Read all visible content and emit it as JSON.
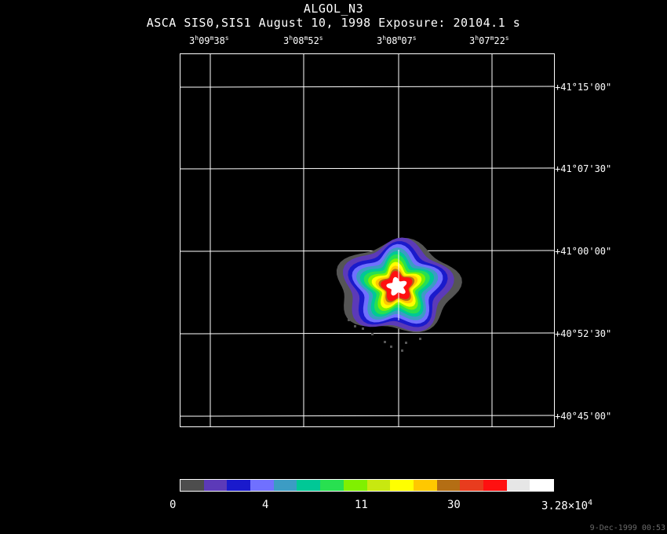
{
  "header": {
    "title": "ALGOL_N3",
    "subtitle": "ASCA SIS0,SIS1 August 10, 1998 Exposure: 20104.1 s"
  },
  "ra_labels": [
    {
      "h": "3",
      "hs": "h",
      "m": "09",
      "ms": "m",
      "s": "38",
      "ss": "s"
    },
    {
      "h": "3",
      "hs": "h",
      "m": "08",
      "ms": "m",
      "s": "52",
      "ss": "s"
    },
    {
      "h": "3",
      "hs": "h",
      "m": "08",
      "ms": "m",
      "s": "07",
      "ss": "s"
    },
    {
      "h": "3",
      "hs": "h",
      "m": "07",
      "ms": "m",
      "s": "22",
      "ss": "s"
    }
  ],
  "dec_labels": [
    "+41°15'00\"",
    "+41°07'30\"",
    "+41°00'00\"",
    "+40°52'30\"",
    "+40°45'00\""
  ],
  "colorbar": {
    "colors": [
      "#4d4d4d",
      "#5c3ab8",
      "#1a1acc",
      "#7070ff",
      "#3c9cc4",
      "#00c896",
      "#28e050",
      "#80f000",
      "#c8e810",
      "#ffff00",
      "#ffc800",
      "#b46e14",
      "#e83c1e",
      "#ff1010",
      "#e6e6e6",
      "#ffffff"
    ],
    "tick_labels": [
      "0",
      "4",
      "11",
      "30",
      "3.28×10"
    ],
    "max_exponent": "4"
  },
  "datestamp": "9-Dec-1999 00:53",
  "image": {
    "contour_colors": {
      "gray": "#555555",
      "purple": "#5c3ab8",
      "blue": "#1a1acc",
      "lightblue": "#7070ff",
      "cyan": "#3c9cc4",
      "teal": "#00c896",
      "green": "#28e050",
      "yellowgreen": "#80f000",
      "yellow": "#ffff00",
      "orange": "#ffc800",
      "brown": "#b46e14",
      "red": "#ff1010",
      "white": "#ffffff"
    }
  }
}
